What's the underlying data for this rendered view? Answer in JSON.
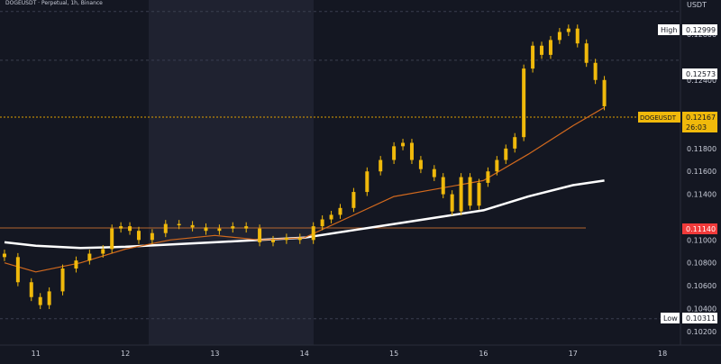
{
  "header": {
    "symbol_line": "DOGEUSDT · Perpetual, 1h, Binance",
    "currency": "USDT"
  },
  "colors": {
    "background": "#141722",
    "session_shade": "#1f2230",
    "candle": "#f0b90b",
    "ma_fast": "#d2691e",
    "ma_slow": "#ffffff",
    "axis_text": "#c8ccd8",
    "dashed_level": "#e0a000",
    "hline_support": "#b5652e",
    "support_label_bg": "#f03a3a",
    "current_label_bg": "#f0b90b",
    "high_low_label_bg": "#ffffff"
  },
  "price_labels": {
    "high": {
      "prefix": "High",
      "value": "0.12999"
    },
    "last": {
      "symbol": "DOGEUSDT",
      "value": "0.12167",
      "countdown": "26:03"
    },
    "support": {
      "value": "0.11140"
    },
    "low": {
      "prefix": "Low",
      "value": "0.10311"
    },
    "mark": {
      "value": "0.12573"
    }
  },
  "chart_data": {
    "type": "candlestick",
    "title": "DOGEUSDT · Perpetual, 1h, Binance",
    "currency": "USDT",
    "x_ticks": [
      "11",
      "12",
      "13",
      "14",
      "15",
      "16",
      "17",
      "18"
    ],
    "y_ticks": [
      "0.12800",
      "0.12400",
      "0.12000",
      "0.11800",
      "0.11600",
      "0.11400",
      "0.11000",
      "0.10800",
      "0.10600",
      "0.10400",
      "0.10200"
    ],
    "ylim": [
      0.1008,
      0.131
    ],
    "xlim": [
      10.6,
      18.2
    ],
    "high": 0.12999,
    "low": 0.10311,
    "last": 0.12167,
    "support_level": 0.1114,
    "marked_level": 0.12573,
    "close_series": [
      {
        "t": 10.65,
        "p": 0.1085
      },
      {
        "t": 10.8,
        "p": 0.1063
      },
      {
        "t": 10.95,
        "p": 0.105
      },
      {
        "t": 11.05,
        "p": 0.1043
      },
      {
        "t": 11.15,
        "p": 0.1055
      },
      {
        "t": 11.3,
        "p": 0.1075
      },
      {
        "t": 11.45,
        "p": 0.1082
      },
      {
        "t": 11.6,
        "p": 0.1088
      },
      {
        "t": 11.75,
        "p": 0.1092
      },
      {
        "t": 11.85,
        "p": 0.111
      },
      {
        "t": 11.95,
        "p": 0.1112
      },
      {
        "t": 12.05,
        "p": 0.1108
      },
      {
        "t": 12.15,
        "p": 0.11
      },
      {
        "t": 12.3,
        "p": 0.1106
      },
      {
        "t": 12.45,
        "p": 0.1114
      },
      {
        "t": 12.6,
        "p": 0.1113
      },
      {
        "t": 12.75,
        "p": 0.1111
      },
      {
        "t": 12.9,
        "p": 0.1108
      },
      {
        "t": 13.05,
        "p": 0.111
      },
      {
        "t": 13.2,
        "p": 0.1112
      },
      {
        "t": 13.35,
        "p": 0.111
      },
      {
        "t": 13.5,
        "p": 0.1098
      },
      {
        "t": 13.65,
        "p": 0.11
      },
      {
        "t": 13.8,
        "p": 0.1102
      },
      {
        "t": 13.95,
        "p": 0.11
      },
      {
        "t": 14.1,
        "p": 0.1112
      },
      {
        "t": 14.2,
        "p": 0.1118
      },
      {
        "t": 14.3,
        "p": 0.1122
      },
      {
        "t": 14.4,
        "p": 0.1128
      },
      {
        "t": 14.55,
        "p": 0.1142
      },
      {
        "t": 14.7,
        "p": 0.116
      },
      {
        "t": 14.85,
        "p": 0.117
      },
      {
        "t": 15.0,
        "p": 0.1182
      },
      {
        "t": 15.1,
        "p": 0.1185
      },
      {
        "t": 15.2,
        "p": 0.117
      },
      {
        "t": 15.3,
        "p": 0.1162
      },
      {
        "t": 15.45,
        "p": 0.1155
      },
      {
        "t": 15.55,
        "p": 0.114
      },
      {
        "t": 15.65,
        "p": 0.1125
      },
      {
        "t": 15.75,
        "p": 0.1155
      },
      {
        "t": 15.85,
        "p": 0.113
      },
      {
        "t": 15.95,
        "p": 0.115
      },
      {
        "t": 16.05,
        "p": 0.116
      },
      {
        "t": 16.15,
        "p": 0.117
      },
      {
        "t": 16.25,
        "p": 0.118
      },
      {
        "t": 16.35,
        "p": 0.119
      },
      {
        "t": 16.45,
        "p": 0.125
      },
      {
        "t": 16.55,
        "p": 0.127
      },
      {
        "t": 16.65,
        "p": 0.1262
      },
      {
        "t": 16.75,
        "p": 0.1275
      },
      {
        "t": 16.85,
        "p": 0.1282
      },
      {
        "t": 16.95,
        "p": 0.1285
      },
      {
        "t": 17.05,
        "p": 0.1272
      },
      {
        "t": 17.15,
        "p": 0.1255
      },
      {
        "t": 17.25,
        "p": 0.124
      },
      {
        "t": 17.35,
        "p": 0.1217
      }
    ],
    "ma_fast": [
      {
        "t": 10.65,
        "p": 0.108
      },
      {
        "t": 11.0,
        "p": 0.1072
      },
      {
        "t": 11.5,
        "p": 0.108
      },
      {
        "t": 12.0,
        "p": 0.1092
      },
      {
        "t": 12.5,
        "p": 0.11
      },
      {
        "t": 13.0,
        "p": 0.1104
      },
      {
        "t": 13.5,
        "p": 0.11
      },
      {
        "t": 14.0,
        "p": 0.1102
      },
      {
        "t": 14.5,
        "p": 0.112
      },
      {
        "t": 15.0,
        "p": 0.1138
      },
      {
        "t": 15.5,
        "p": 0.1145
      },
      {
        "t": 16.0,
        "p": 0.1152
      },
      {
        "t": 16.5,
        "p": 0.1175
      },
      {
        "t": 17.0,
        "p": 0.12
      },
      {
        "t": 17.35,
        "p": 0.1216
      }
    ],
    "ma_slow": [
      {
        "t": 10.65,
        "p": 0.1098
      },
      {
        "t": 11.0,
        "p": 0.1095
      },
      {
        "t": 11.5,
        "p": 0.1093
      },
      {
        "t": 12.0,
        "p": 0.1094
      },
      {
        "t": 12.5,
        "p": 0.1096
      },
      {
        "t": 13.0,
        "p": 0.1098
      },
      {
        "t": 13.5,
        "p": 0.11
      },
      {
        "t": 14.0,
        "p": 0.1102
      },
      {
        "t": 14.5,
        "p": 0.1108
      },
      {
        "t": 15.0,
        "p": 0.1114
      },
      {
        "t": 15.5,
        "p": 0.112
      },
      {
        "t": 16.0,
        "p": 0.1126
      },
      {
        "t": 16.5,
        "p": 0.1138
      },
      {
        "t": 17.0,
        "p": 0.1148
      },
      {
        "t": 17.35,
        "p": 0.1152
      }
    ]
  }
}
